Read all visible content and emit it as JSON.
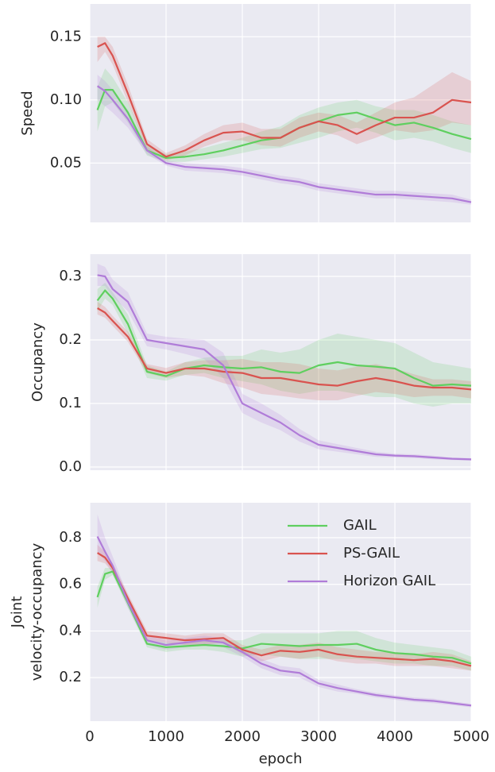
{
  "chart_data": [
    {
      "type": "line",
      "ylabel": "Speed",
      "x": [
        100,
        200,
        300,
        500,
        750,
        1000,
        1250,
        1500,
        1750,
        2000,
        2250,
        2500,
        2750,
        3000,
        3250,
        3500,
        3750,
        4000,
        4250,
        4500,
        4750,
        5000
      ],
      "xlim": [
        0,
        5000
      ],
      "ylim": [
        0.003,
        0.176
      ],
      "yticks": [
        {
          "value": 0.05,
          "label": "0.05"
        },
        {
          "value": 0.1,
          "label": "0.10"
        },
        0.15
      ],
      "grid": true,
      "series": [
        {
          "name": "GAIL",
          "color": "#5fcf5f",
          "values": [
            0.092,
            0.108,
            0.108,
            0.09,
            0.06,
            0.054,
            0.055,
            0.057,
            0.06,
            0.064,
            0.068,
            0.07,
            0.078,
            0.083,
            0.088,
            0.09,
            0.085,
            0.08,
            0.082,
            0.078,
            0.073,
            0.069
          ],
          "lower": [
            0.075,
            0.095,
            0.098,
            0.082,
            0.056,
            0.051,
            0.051,
            0.053,
            0.055,
            0.058,
            0.061,
            0.062,
            0.066,
            0.07,
            0.075,
            0.078,
            0.074,
            0.068,
            0.07,
            0.067,
            0.062,
            0.058
          ],
          "upper": [
            0.11,
            0.125,
            0.118,
            0.098,
            0.064,
            0.057,
            0.059,
            0.062,
            0.066,
            0.07,
            0.075,
            0.079,
            0.088,
            0.094,
            0.098,
            0.1,
            0.095,
            0.092,
            0.092,
            0.088,
            0.083,
            0.08
          ]
        },
        {
          "name": "PS-GAIL",
          "color": "#d9534f",
          "values": [
            0.142,
            0.145,
            0.135,
            0.105,
            0.065,
            0.055,
            0.06,
            0.068,
            0.074,
            0.075,
            0.07,
            0.07,
            0.078,
            0.083,
            0.08,
            0.073,
            0.08,
            0.086,
            0.086,
            0.09,
            0.1,
            0.098
          ],
          "lower": [
            0.13,
            0.138,
            0.128,
            0.098,
            0.061,
            0.052,
            0.056,
            0.063,
            0.068,
            0.068,
            0.064,
            0.063,
            0.07,
            0.075,
            0.072,
            0.065,
            0.07,
            0.076,
            0.074,
            0.076,
            0.082,
            0.08
          ],
          "upper": [
            0.15,
            0.15,
            0.142,
            0.112,
            0.069,
            0.058,
            0.064,
            0.073,
            0.08,
            0.082,
            0.077,
            0.077,
            0.086,
            0.09,
            0.088,
            0.082,
            0.09,
            0.098,
            0.102,
            0.112,
            0.122,
            0.115
          ]
        },
        {
          "name": "Horizon GAIL",
          "color": "#b07cd8",
          "values": [
            0.111,
            0.107,
            0.1,
            0.085,
            0.06,
            0.05,
            0.047,
            0.046,
            0.045,
            0.043,
            0.04,
            0.037,
            0.035,
            0.031,
            0.029,
            0.027,
            0.025,
            0.025,
            0.024,
            0.023,
            0.022,
            0.019
          ],
          "lower": [
            0.1,
            0.095,
            0.09,
            0.078,
            0.057,
            0.048,
            0.044,
            0.043,
            0.042,
            0.04,
            0.037,
            0.034,
            0.032,
            0.028,
            0.026,
            0.024,
            0.022,
            0.022,
            0.021,
            0.02,
            0.019,
            0.017
          ],
          "upper": [
            0.12,
            0.115,
            0.108,
            0.092,
            0.063,
            0.052,
            0.05,
            0.049,
            0.048,
            0.046,
            0.043,
            0.04,
            0.038,
            0.034,
            0.032,
            0.03,
            0.028,
            0.028,
            0.027,
            0.026,
            0.025,
            0.021
          ]
        }
      ]
    },
    {
      "type": "line",
      "ylabel": "Occupancy",
      "x": [
        100,
        200,
        300,
        500,
        750,
        1000,
        1250,
        1500,
        1750,
        2000,
        2250,
        2500,
        2750,
        3000,
        3250,
        3500,
        3750,
        4000,
        4250,
        4500,
        4750,
        5000
      ],
      "xlim": [
        0,
        5000
      ],
      "ylim": [
        -0.005,
        0.335
      ],
      "yticks": [
        {
          "value": 0,
          "label": "0.0"
        },
        0.1,
        0.2,
        0.3
      ],
      "grid": true,
      "series": [
        {
          "name": "GAIL",
          "color": "#5fcf5f",
          "values": [
            0.262,
            0.278,
            0.265,
            0.225,
            0.15,
            0.143,
            0.155,
            0.16,
            0.157,
            0.155,
            0.157,
            0.15,
            0.148,
            0.16,
            0.165,
            0.16,
            0.158,
            0.155,
            0.14,
            0.128,
            0.13,
            0.128
          ],
          "lower": [
            0.245,
            0.265,
            0.255,
            0.21,
            0.14,
            0.136,
            0.145,
            0.148,
            0.14,
            0.135,
            0.13,
            0.12,
            0.115,
            0.12,
            0.12,
            0.115,
            0.11,
            0.11,
            0.1,
            0.095,
            0.1,
            0.1
          ],
          "upper": [
            0.28,
            0.29,
            0.275,
            0.24,
            0.16,
            0.15,
            0.165,
            0.172,
            0.175,
            0.175,
            0.185,
            0.18,
            0.185,
            0.2,
            0.21,
            0.205,
            0.2,
            0.195,
            0.18,
            0.165,
            0.16,
            0.155
          ]
        },
        {
          "name": "PS-GAIL",
          "color": "#d9534f",
          "values": [
            0.25,
            0.243,
            0.23,
            0.205,
            0.155,
            0.148,
            0.155,
            0.155,
            0.15,
            0.148,
            0.14,
            0.14,
            0.135,
            0.13,
            0.128,
            0.135,
            0.14,
            0.135,
            0.128,
            0.125,
            0.125,
            0.122
          ],
          "lower": [
            0.24,
            0.235,
            0.222,
            0.197,
            0.148,
            0.14,
            0.145,
            0.142,
            0.132,
            0.125,
            0.115,
            0.112,
            0.108,
            0.105,
            0.105,
            0.112,
            0.118,
            0.115,
            0.11,
            0.112,
            0.112,
            0.108
          ],
          "upper": [
            0.26,
            0.252,
            0.238,
            0.213,
            0.162,
            0.156,
            0.165,
            0.168,
            0.168,
            0.17,
            0.165,
            0.165,
            0.162,
            0.155,
            0.152,
            0.158,
            0.162,
            0.155,
            0.146,
            0.138,
            0.138,
            0.135
          ]
        },
        {
          "name": "Horizon GAIL",
          "color": "#b07cd8",
          "values": [
            0.302,
            0.3,
            0.28,
            0.26,
            0.2,
            0.195,
            0.19,
            0.185,
            0.16,
            0.1,
            0.085,
            0.07,
            0.05,
            0.035,
            0.03,
            0.025,
            0.02,
            0.018,
            0.017,
            0.015,
            0.013,
            0.012
          ],
          "lower": [
            0.285,
            0.285,
            0.268,
            0.245,
            0.19,
            0.185,
            0.178,
            0.17,
            0.14,
            0.085,
            0.07,
            0.058,
            0.04,
            0.028,
            0.024,
            0.02,
            0.016,
            0.015,
            0.014,
            0.012,
            0.011,
            0.01
          ],
          "upper": [
            0.32,
            0.315,
            0.295,
            0.275,
            0.21,
            0.205,
            0.202,
            0.2,
            0.18,
            0.115,
            0.1,
            0.082,
            0.06,
            0.042,
            0.036,
            0.03,
            0.024,
            0.021,
            0.02,
            0.018,
            0.015,
            0.014
          ]
        }
      ]
    },
    {
      "type": "line",
      "ylabel": [
        "Joint",
        "velocity-occupancy"
      ],
      "xlabel": "epoch",
      "x": [
        100,
        200,
        300,
        500,
        750,
        1000,
        1250,
        1500,
        1750,
        2000,
        2250,
        2500,
        2750,
        3000,
        3250,
        3500,
        3750,
        4000,
        4250,
        4500,
        4750,
        5000
      ],
      "xlim": [
        0,
        5000
      ],
      "xticks": [
        0,
        1000,
        2000,
        3000,
        4000,
        5000
      ],
      "ylim": [
        0.013,
        0.95
      ],
      "yticks": [
        0.2,
        0.4,
        0.6,
        0.8
      ],
      "grid": true,
      "legend": "upper right",
      "series": [
        {
          "name": "GAIL",
          "color": "#5fcf5f",
          "values": [
            0.545,
            0.645,
            0.655,
            0.52,
            0.345,
            0.33,
            0.335,
            0.34,
            0.335,
            0.325,
            0.345,
            0.34,
            0.335,
            0.34,
            0.34,
            0.345,
            0.32,
            0.305,
            0.3,
            0.29,
            0.285,
            0.26
          ],
          "lower": [
            0.5,
            0.62,
            0.64,
            0.5,
            0.33,
            0.31,
            0.32,
            0.32,
            0.31,
            0.29,
            0.3,
            0.29,
            0.28,
            0.28,
            0.28,
            0.28,
            0.27,
            0.26,
            0.26,
            0.25,
            0.25,
            0.23
          ],
          "upper": [
            0.59,
            0.67,
            0.67,
            0.54,
            0.36,
            0.35,
            0.35,
            0.36,
            0.36,
            0.36,
            0.39,
            0.39,
            0.39,
            0.39,
            0.4,
            0.4,
            0.37,
            0.35,
            0.34,
            0.33,
            0.32,
            0.29
          ]
        },
        {
          "name": "PS-GAIL",
          "color": "#d9534f",
          "values": [
            0.735,
            0.715,
            0.67,
            0.54,
            0.38,
            0.37,
            0.36,
            0.365,
            0.37,
            0.32,
            0.295,
            0.315,
            0.31,
            0.32,
            0.3,
            0.29,
            0.285,
            0.28,
            0.275,
            0.28,
            0.27,
            0.25
          ],
          "lower": [
            0.7,
            0.69,
            0.65,
            0.52,
            0.36,
            0.35,
            0.34,
            0.34,
            0.35,
            0.3,
            0.27,
            0.29,
            0.28,
            0.29,
            0.27,
            0.26,
            0.26,
            0.25,
            0.25,
            0.25,
            0.24,
            0.23
          ],
          "upper": [
            0.77,
            0.74,
            0.69,
            0.56,
            0.4,
            0.39,
            0.38,
            0.39,
            0.39,
            0.34,
            0.32,
            0.34,
            0.34,
            0.35,
            0.33,
            0.32,
            0.31,
            0.31,
            0.3,
            0.31,
            0.3,
            0.27
          ]
        },
        {
          "name": "Horizon GAIL",
          "color": "#b07cd8",
          "values": [
            0.805,
            0.74,
            0.68,
            0.525,
            0.36,
            0.34,
            0.35,
            0.36,
            0.35,
            0.31,
            0.26,
            0.23,
            0.22,
            0.175,
            0.155,
            0.14,
            0.125,
            0.115,
            0.105,
            0.1,
            0.09,
            0.08
          ],
          "lower": [
            0.74,
            0.7,
            0.65,
            0.5,
            0.34,
            0.32,
            0.33,
            0.34,
            0.33,
            0.29,
            0.24,
            0.21,
            0.2,
            0.16,
            0.14,
            0.13,
            0.115,
            0.105,
            0.095,
            0.09,
            0.082,
            0.072
          ],
          "upper": [
            0.9,
            0.8,
            0.72,
            0.55,
            0.38,
            0.36,
            0.37,
            0.38,
            0.37,
            0.33,
            0.28,
            0.25,
            0.24,
            0.19,
            0.17,
            0.15,
            0.135,
            0.125,
            0.115,
            0.11,
            0.098,
            0.088
          ]
        }
      ]
    }
  ]
}
